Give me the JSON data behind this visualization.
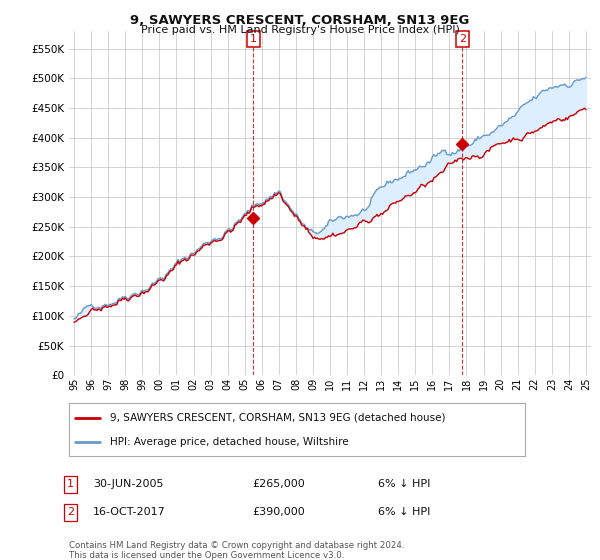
{
  "title": "9, SAWYERS CRESCENT, CORSHAM, SN13 9EG",
  "subtitle": "Price paid vs. HM Land Registry's House Price Index (HPI)",
  "ylim": [
    0,
    580000
  ],
  "yticks": [
    0,
    50000,
    100000,
    150000,
    200000,
    250000,
    300000,
    350000,
    400000,
    450000,
    500000,
    550000
  ],
  "hpi_color": "#6699cc",
  "fill_color": "#ddeeff",
  "property_color": "#cc0000",
  "sale1_t": 10.5,
  "sale1_price": 265000,
  "sale1_label": "1",
  "sale1_date_str": "30-JUN-2005",
  "sale1_pct": "6% ↓ HPI",
  "sale2_t": 22.75,
  "sale2_price": 390000,
  "sale2_label": "2",
  "sale2_date_str": "16-OCT-2017",
  "sale2_pct": "6% ↓ HPI",
  "legend_property": "9, SAWYERS CRESCENT, CORSHAM, SN13 9EG (detached house)",
  "legend_hpi": "HPI: Average price, detached house, Wiltshire",
  "footnote1": "Contains HM Land Registry data © Crown copyright and database right 2024.",
  "footnote2": "This data is licensed under the Open Government Licence v3.0.",
  "background_color": "#ffffff",
  "grid_color": "#cccccc",
  "year_labels": [
    "95",
    "96",
    "97",
    "98",
    "99",
    "00",
    "01",
    "02",
    "03",
    "04",
    "05",
    "06",
    "07",
    "08",
    "09",
    "10",
    "11",
    "12",
    "13",
    "14",
    "15",
    "16",
    "17",
    "18",
    "19",
    "20",
    "21",
    "22",
    "23",
    "24",
    "25"
  ]
}
